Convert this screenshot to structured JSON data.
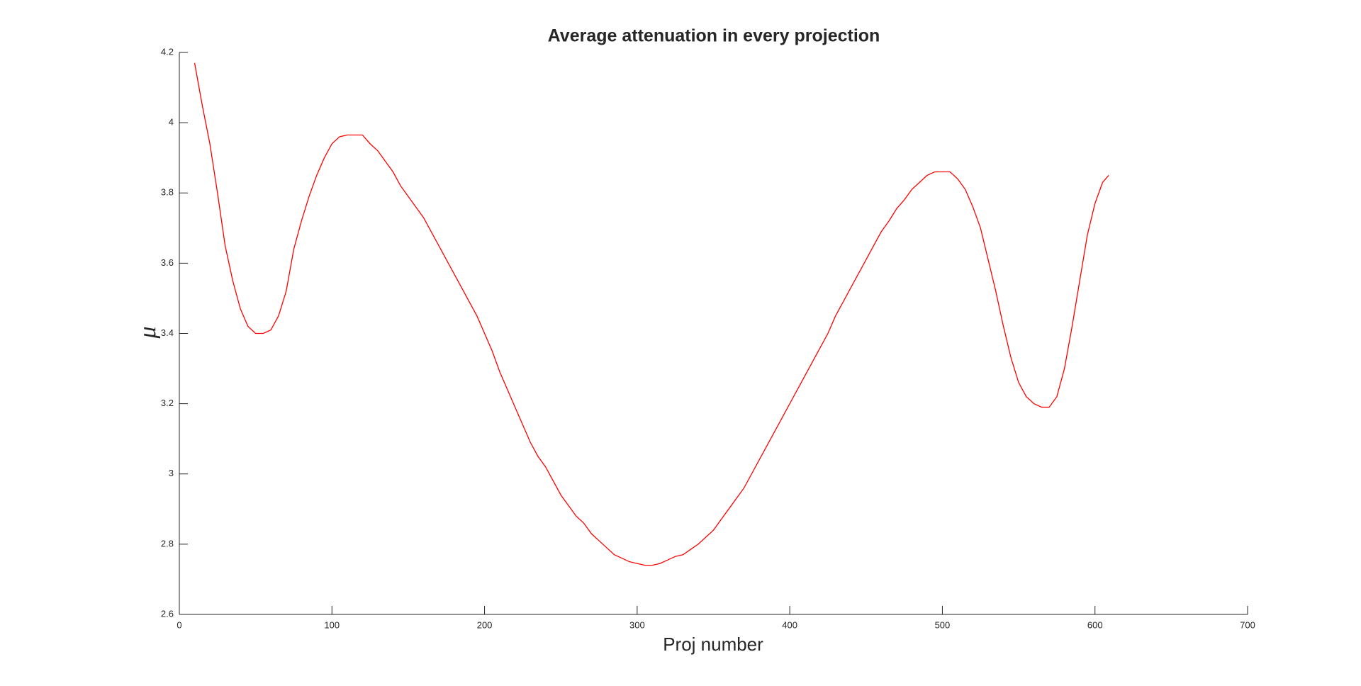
{
  "chart_data": {
    "type": "line",
    "title": "Average attenuation in every projection",
    "x_label": "Proj number",
    "y_label": "μ",
    "series": [
      {
        "color": "#ff0000",
        "x": [
          10,
          15,
          20,
          25,
          30,
          35,
          40,
          45,
          50,
          55,
          60,
          65,
          70,
          75,
          80,
          85,
          90,
          95,
          100,
          105,
          110,
          115,
          120,
          125,
          130,
          135,
          140,
          145,
          150,
          155,
          160,
          165,
          170,
          175,
          180,
          185,
          190,
          195,
          200,
          205,
          210,
          215,
          220,
          225,
          230,
          235,
          240,
          245,
          250,
          255,
          260,
          265,
          270,
          275,
          280,
          285,
          290,
          295,
          300,
          305,
          310,
          315,
          320,
          325,
          330,
          335,
          340,
          345,
          350,
          355,
          360,
          365,
          370,
          375,
          380,
          385,
          390,
          395,
          400,
          405,
          410,
          415,
          420,
          425,
          430,
          435,
          440,
          445,
          450,
          455,
          460,
          465,
          470,
          475,
          480,
          485,
          490,
          495,
          500,
          505,
          510,
          515,
          520,
          525,
          530,
          535,
          540,
          545,
          550,
          555,
          560,
          565,
          570,
          575,
          580,
          585,
          590,
          595,
          600,
          605,
          609
        ],
        "values": [
          4.17,
          4.05,
          3.94,
          3.8,
          3.65,
          3.55,
          3.47,
          3.42,
          3.4,
          3.4,
          3.41,
          3.45,
          3.52,
          3.64,
          3.72,
          3.79,
          3.85,
          3.9,
          3.94,
          3.96,
          3.965,
          3.965,
          3.965,
          3.94,
          3.92,
          3.89,
          3.86,
          3.82,
          3.79,
          3.76,
          3.73,
          3.69,
          3.65,
          3.61,
          3.57,
          3.53,
          3.49,
          3.45,
          3.4,
          3.35,
          3.29,
          3.24,
          3.19,
          3.14,
          3.09,
          3.05,
          3.02,
          2.98,
          2.94,
          2.91,
          2.88,
          2.86,
          2.83,
          2.81,
          2.79,
          2.77,
          2.76,
          2.75,
          2.745,
          2.74,
          2.74,
          2.745,
          2.755,
          2.765,
          2.77,
          2.785,
          2.8,
          2.82,
          2.84,
          2.87,
          2.9,
          2.93,
          2.96,
          3.0,
          3.04,
          3.08,
          3.12,
          3.16,
          3.2,
          3.24,
          3.28,
          3.32,
          3.36,
          3.4,
          3.45,
          3.49,
          3.53,
          3.57,
          3.61,
          3.65,
          3.69,
          3.72,
          3.755,
          3.78,
          3.81,
          3.83,
          3.85,
          3.86,
          3.86,
          3.86,
          3.84,
          3.81,
          3.76,
          3.7,
          3.61,
          3.52,
          3.42,
          3.33,
          3.26,
          3.22,
          3.2,
          3.19,
          3.19,
          3.22,
          3.3,
          3.42,
          3.55,
          3.68,
          3.77,
          3.83,
          3.85
        ]
      }
    ],
    "xlim": [
      0,
      700
    ],
    "xticks": [
      0,
      100,
      200,
      300,
      400,
      500,
      600,
      700
    ],
    "ylim": [
      2.6,
      4.2
    ],
    "yticks": [
      2.6,
      2.8,
      3,
      3.2,
      3.4,
      3.6,
      3.8,
      4,
      4.2
    ],
    "grid": false
  }
}
